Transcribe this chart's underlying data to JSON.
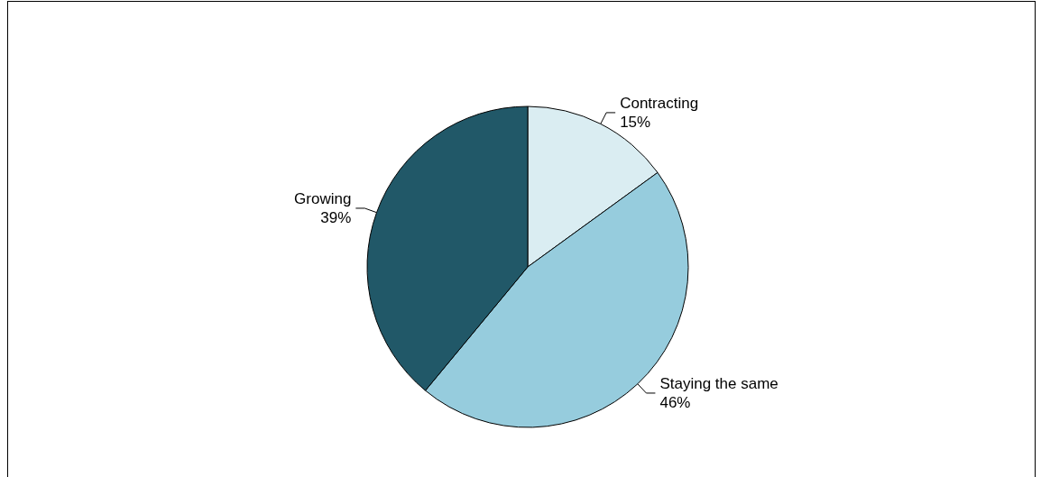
{
  "chart_data": {
    "type": "pie",
    "categories": [
      "Contracting",
      "Staying the same",
      "Growing"
    ],
    "values": [
      15,
      46,
      39
    ],
    "value_labels": [
      "15%",
      "46%",
      "39%"
    ],
    "colors": [
      "#daedf2",
      "#96ccdd",
      "#215868"
    ],
    "legend": false
  }
}
